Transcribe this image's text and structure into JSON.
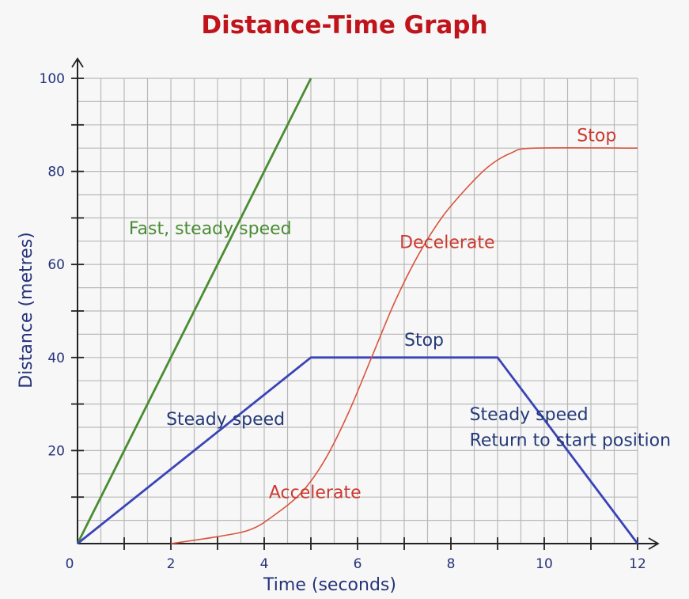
{
  "chart_data": {
    "type": "line",
    "title": "Distance-Time Graph",
    "xlabel": "Time (seconds)",
    "ylabel": "Distance (metres)",
    "xlim": [
      0,
      12
    ],
    "ylim": [
      0,
      100
    ],
    "x_ticks": [
      0,
      2,
      4,
      6,
      8,
      10,
      12
    ],
    "y_ticks": [
      20,
      40,
      60,
      80,
      100
    ],
    "grid": true,
    "colors": {
      "title": "#c0141c",
      "axis_text": "#26337a",
      "grid": "#b9b9b9",
      "green": "#4a8c34",
      "blue": "#3a44b6",
      "red": "#d8553e",
      "red_text": "#cc3a30",
      "blue_text": "#243a78"
    },
    "series": [
      {
        "color_key": "green",
        "points": [
          [
            0,
            0
          ],
          [
            5,
            100
          ]
        ]
      },
      {
        "color_key": "blue",
        "points": [
          [
            0,
            0
          ],
          [
            5,
            40
          ],
          [
            9,
            40
          ],
          [
            12,
            0
          ]
        ]
      },
      {
        "color_key": "red",
        "points": [
          [
            2,
            0
          ],
          [
            3,
            1.5
          ],
          [
            3.7,
            3
          ],
          [
            4.2,
            6
          ],
          [
            4.8,
            11
          ],
          [
            5.3,
            18
          ],
          [
            5.8,
            28
          ],
          [
            6.3,
            40
          ],
          [
            6.8,
            52
          ],
          [
            7.3,
            62
          ],
          [
            7.8,
            70
          ],
          [
            8.3,
            76
          ],
          [
            8.8,
            81
          ],
          [
            9.3,
            84
          ],
          [
            9.8,
            85
          ],
          [
            12,
            85
          ]
        ]
      }
    ],
    "annotations": [
      {
        "text": "Fast, steady speed",
        "x": 1.1,
        "y": 66.5,
        "color_key": "green"
      },
      {
        "text": "Steady speed",
        "x": 1.9,
        "y": 25.5,
        "color_key": "blue_text"
      },
      {
        "text": "Stop",
        "x": 7.0,
        "y": 42.5,
        "color_key": "blue_text"
      },
      {
        "text": "Steady speed",
        "x": 8.4,
        "y": 26.5,
        "color_key": "blue_text"
      },
      {
        "text": "Return to start position",
        "x": 8.4,
        "y": 21,
        "color_key": "blue_text"
      },
      {
        "text": "Accelerate",
        "x": 4.1,
        "y": 9.8,
        "color_key": "red_text"
      },
      {
        "text": "Decelerate",
        "x": 6.9,
        "y": 63.5,
        "color_key": "red_text"
      },
      {
        "text": "Stop",
        "x": 10.7,
        "y": 86.5,
        "color_key": "red_text"
      }
    ]
  }
}
